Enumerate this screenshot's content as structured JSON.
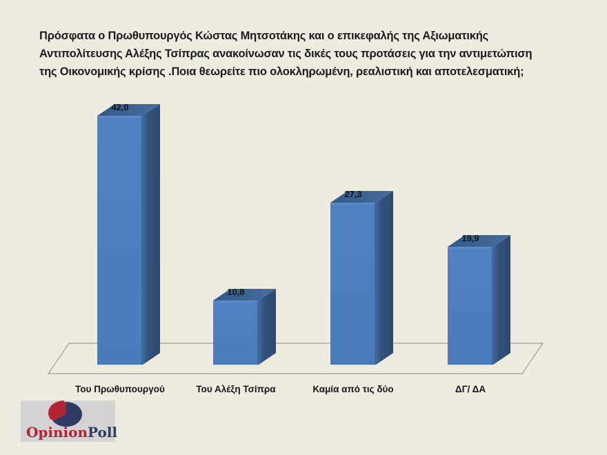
{
  "background_color": "#eeece0",
  "title": {
    "lines": [
      "Πρόσφατα ο Πρωθυπουργός Κώστας Μητσοτάκης και ο  επικεφαλής της Αξιωματικής",
      "Αντιπολίτευσης Αλέξης Τσίπρας ανακοίνωσαν τις δικές τους προτάσεις για την αντιμετώπιση",
      "της Οικονομικής κρίσης .Ποια θεωρείτε πιο ολοκληρωμένη, ρεαλιστική και αποτελεσματική;"
    ]
  },
  "chart_data": {
    "type": "bar",
    "style": "3d-column",
    "title": "",
    "xlabel": "",
    "ylabel": "",
    "categories": [
      "Του Πρωθυπουργού",
      "Του Αλέξη Τσίπρα",
      "Καμία από τις δύο",
      "ΔΓ/ ΔΑ"
    ],
    "values": [
      42.0,
      10.8,
      27.3,
      19.9
    ],
    "value_labels": [
      "42,0",
      "10,8",
      "27,3",
      "19,9"
    ],
    "ylim": [
      0,
      45
    ],
    "grid": false,
    "legend": false,
    "axis_ticks": "none",
    "bar_front_color": "#4d7ec1",
    "bar_side_color": "#2e5078",
    "bar_top_color": "#3a6090",
    "floor_outline_color": "#8d8d85"
  },
  "logo": {
    "icon": "pie-chart-icon",
    "icon_colors": {
      "base": "#2e3a64",
      "slice": "#b22433"
    },
    "text_primary": "Opinion",
    "text_secondary": "Poll",
    "primary_color": "#b22433",
    "secondary_color": "#303c66"
  }
}
